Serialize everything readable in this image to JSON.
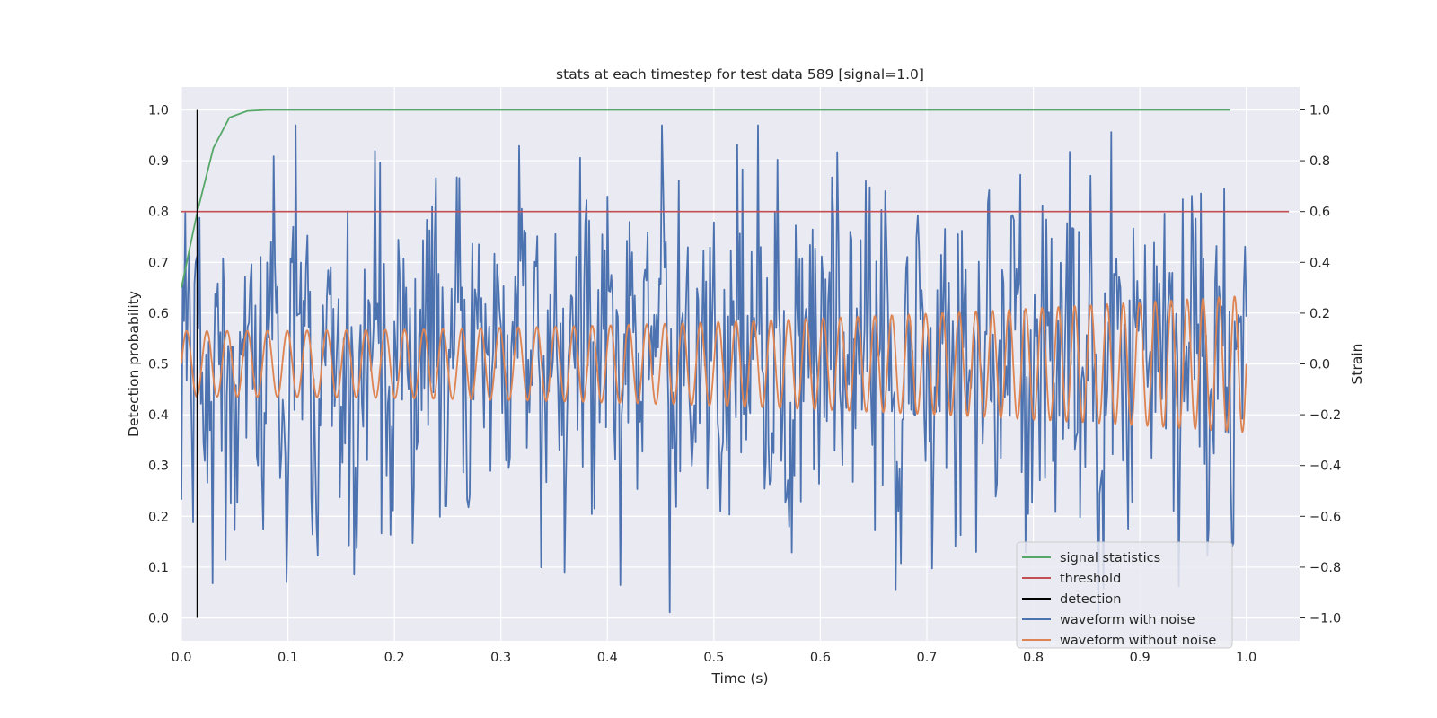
{
  "chart_data": {
    "type": "line",
    "title": "stats at each timestep for test data 589 [signal=1.0]",
    "xlabel": "Time (s)",
    "ylabel": "Detection probability",
    "y2label": "Strain",
    "xlim": [
      0.0,
      1.05
    ],
    "ylim": [
      -0.045,
      1.045
    ],
    "y2lim": [
      -1.09,
      1.09
    ],
    "xticks": [
      0.0,
      0.1,
      0.2,
      0.3,
      0.4,
      0.5,
      0.6,
      0.7,
      0.8,
      0.9,
      1.0
    ],
    "xtick_labels": [
      "0.0",
      "0.1",
      "0.2",
      "0.3",
      "0.4",
      "0.5",
      "0.6",
      "0.7",
      "0.8",
      "0.9",
      "1.0"
    ],
    "yticks": [
      0.0,
      0.1,
      0.2,
      0.3,
      0.4,
      0.5,
      0.6,
      0.7,
      0.8,
      0.9,
      1.0
    ],
    "ytick_labels": [
      "0.0",
      "0.1",
      "0.2",
      "0.3",
      "0.4",
      "0.5",
      "0.6",
      "0.7",
      "0.8",
      "0.9",
      "1.0"
    ],
    "y2ticks": [
      -1.0,
      -0.8,
      -0.6,
      -0.4,
      -0.2,
      0.0,
      0.2,
      0.4,
      0.6,
      0.8,
      1.0
    ],
    "y2tick_labels": [
      "−1.0",
      "−0.8",
      "−0.6",
      "−0.4",
      "−0.2",
      "0.0",
      "0.2",
      "0.4",
      "0.6",
      "0.8",
      "1.0"
    ],
    "grid": true,
    "legend_position": "lower-right",
    "series": [
      {
        "name": "signal statistics",
        "axis": "left",
        "color": "#55a868",
        "x": [
          0.0,
          0.015,
          0.03,
          0.045,
          0.062,
          0.08,
          0.2,
          0.4,
          0.6,
          0.8,
          0.985
        ],
        "y": [
          0.65,
          0.8,
          0.925,
          0.985,
          0.998,
          1.0,
          1.0,
          1.0,
          1.0,
          1.0,
          1.0
        ]
      },
      {
        "name": "threshold",
        "axis": "left",
        "color": "#c44e52",
        "x": [
          0.0,
          1.04
        ],
        "y": [
          0.8,
          0.8
        ]
      },
      {
        "name": "detection",
        "axis": "left",
        "color": "#000000",
        "x": [
          0.015,
          0.015
        ],
        "y": [
          0.0,
          1.0
        ]
      },
      {
        "name": "waveform with noise",
        "axis": "right",
        "color": "#4c72b0",
        "x_range": [
          0.0,
          1.0
        ],
        "y": [
          0.12,
          0.35,
          -0.4,
          0.2,
          -0.55,
          0.1,
          0.45,
          -0.2,
          0.55,
          -0.75,
          0.3,
          0.05,
          -0.3,
          0.62,
          -0.1,
          0.2,
          -0.45,
          0.35,
          0.1,
          -0.25,
          0.5,
          -0.6,
          0.15,
          0.4,
          -0.05,
          0.25,
          -0.35,
          0.75,
          -0.3,
          0.1,
          -0.45,
          0.4,
          0.2,
          -0.15,
          0.48,
          -0.55,
          0.1,
          0.3,
          -0.2,
          0.42,
          -0.1,
          0.05,
          -0.4,
          0.25,
          0.9,
          -0.5,
          0.2,
          0.1,
          -0.35,
          0.45,
          -0.2,
          0.3,
          -0.05,
          0.55,
          -0.3,
          0.15,
          -0.6,
          0.4,
          0.05,
          -0.2,
          0.35,
          -0.45,
          0.1,
          0.5,
          -0.15,
          0.25,
          -0.85,
          0.3,
          0.05,
          -0.3,
          0.45,
          -0.1,
          0.2,
          -0.5,
          0.35,
          0.1,
          -0.25,
          0.82,
          -0.4,
          0.15,
          0.3,
          -0.2,
          0.55,
          -0.35,
          0.1,
          -0.6,
          0.45,
          0.2,
          -0.15,
          0.4,
          -0.05,
          0.3,
          -0.45,
          0.6,
          0.05,
          -0.25,
          0.35,
          -0.5,
          0.15,
          0.25
        ],
        "noise_band": [
          -0.98,
          0.94
        ]
      },
      {
        "name": "waveform without noise",
        "axis": "right",
        "color": "#dd8452",
        "x_range": [
          0.0,
          1.0
        ],
        "amplitude_start": 0.13,
        "amplitude_end": 0.27,
        "cycles": 52
      }
    ]
  }
}
